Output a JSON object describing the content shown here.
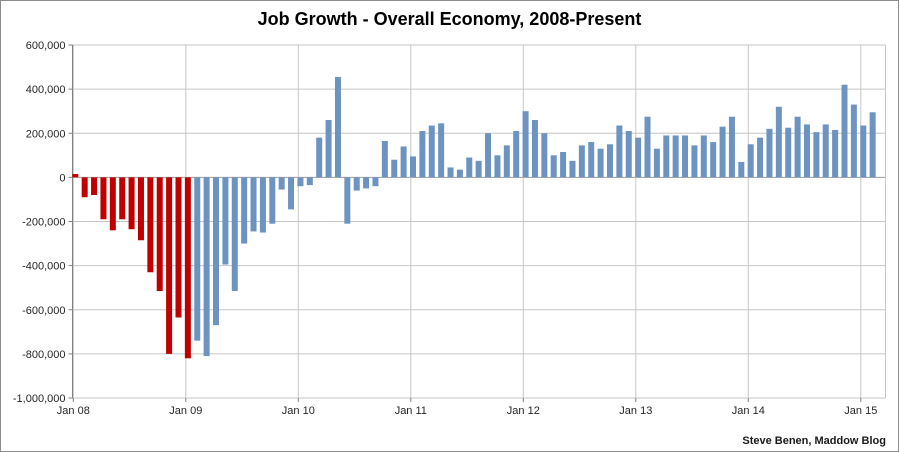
{
  "title": "Job Growth - Overall Economy, 2008-Present",
  "attribution": "Steve Benen, Maddow Blog",
  "colors": {
    "pre_2009_bar_red": "#c00000",
    "post_2009_bar_blue": "#6d94c1",
    "gridline": "#c6c6c6",
    "zero_line": "#9b9b9b",
    "axis_line": "#808080"
  },
  "y_axis": {
    "tick_labels": [
      "600,000",
      "400,000",
      "200,000",
      "0",
      "-200,000",
      "-400,000",
      "-600,000",
      "-800,000",
      "-1,000,000"
    ]
  },
  "x_axis": {
    "tick_labels": [
      "Jan 08",
      "Jan 09",
      "Jan 10",
      "Jan 11",
      "Jan 12",
      "Jan 13",
      "Jan 14",
      "Jan 15"
    ]
  },
  "chart_data": {
    "type": "bar",
    "title": "Job Growth - Overall Economy, 2008-Present",
    "xlabel": "",
    "ylabel": "",
    "ylim": [
      -1000000,
      600000
    ],
    "y_step": 200000,
    "grid": true,
    "legend": false,
    "red_bar_count": 13,
    "months": [
      "Jan 2008",
      "Feb 2008",
      "Mar 2008",
      "Apr 2008",
      "May 2008",
      "Jun 2008",
      "Jul 2008",
      "Aug 2008",
      "Sep 2008",
      "Oct 2008",
      "Nov 2008",
      "Dec 2008",
      "Jan 2009",
      "Feb 2009",
      "Mar 2009",
      "Apr 2009",
      "May 2009",
      "Jun 2009",
      "Jul 2009",
      "Aug 2009",
      "Sep 2009",
      "Oct 2009",
      "Nov 2009",
      "Dec 2009",
      "Jan 2010",
      "Feb 2010",
      "Mar 2010",
      "Apr 2010",
      "May 2010",
      "Jun 2010",
      "Jul 2010",
      "Aug 2010",
      "Sep 2010",
      "Oct 2010",
      "Nov 2010",
      "Dec 2010",
      "Jan 2011",
      "Feb 2011",
      "Mar 2011",
      "Apr 2011",
      "May 2011",
      "Jun 2011",
      "Jul 2011",
      "Aug 2011",
      "Sep 2011",
      "Oct 2011",
      "Nov 2011",
      "Dec 2011",
      "Jan 2012",
      "Feb 2012",
      "Mar 2012",
      "Apr 2012",
      "May 2012",
      "Jun 2012",
      "Jul 2012",
      "Aug 2012",
      "Sep 2012",
      "Oct 2012",
      "Nov 2012",
      "Dec 2012",
      "Jan 2013",
      "Feb 2013",
      "Mar 2013",
      "Apr 2013",
      "May 2013",
      "Jun 2013",
      "Jul 2013",
      "Aug 2013",
      "Sep 2013",
      "Oct 2013",
      "Nov 2013",
      "Dec 2013",
      "Jan 2014",
      "Feb 2014",
      "Mar 2014",
      "Apr 2014",
      "May 2014",
      "Jun 2014",
      "Jul 2014",
      "Aug 2014",
      "Sep 2014",
      "Oct 2014",
      "Nov 2014",
      "Dec 2014",
      "Jan 2015",
      "Feb 2015"
    ],
    "values": [
      15000,
      -90000,
      -80000,
      -190000,
      -240000,
      -190000,
      -235000,
      -285000,
      -430000,
      -515000,
      -800000,
      -635000,
      -820000,
      -740000,
      -810000,
      -670000,
      -395000,
      -515000,
      -300000,
      -245000,
      -250000,
      -210000,
      -55000,
      -145000,
      -40000,
      -35000,
      180000,
      260000,
      455000,
      -210000,
      -60000,
      -50000,
      -40000,
      165000,
      80000,
      140000,
      95000,
      210000,
      235000,
      245000,
      45000,
      35000,
      90000,
      75000,
      200000,
      100000,
      145000,
      210000,
      300000,
      260000,
      200000,
      100000,
      115000,
      75000,
      145000,
      160000,
      130000,
      150000,
      235000,
      210000,
      180000,
      275000,
      130000,
      190000,
      190000,
      190000,
      145000,
      190000,
      160000,
      230000,
      275000,
      70000,
      150000,
      180000,
      220000,
      320000,
      225000,
      275000,
      240000,
      205000,
      240000,
      215000,
      420000,
      330000,
      235000,
      295000
    ]
  }
}
